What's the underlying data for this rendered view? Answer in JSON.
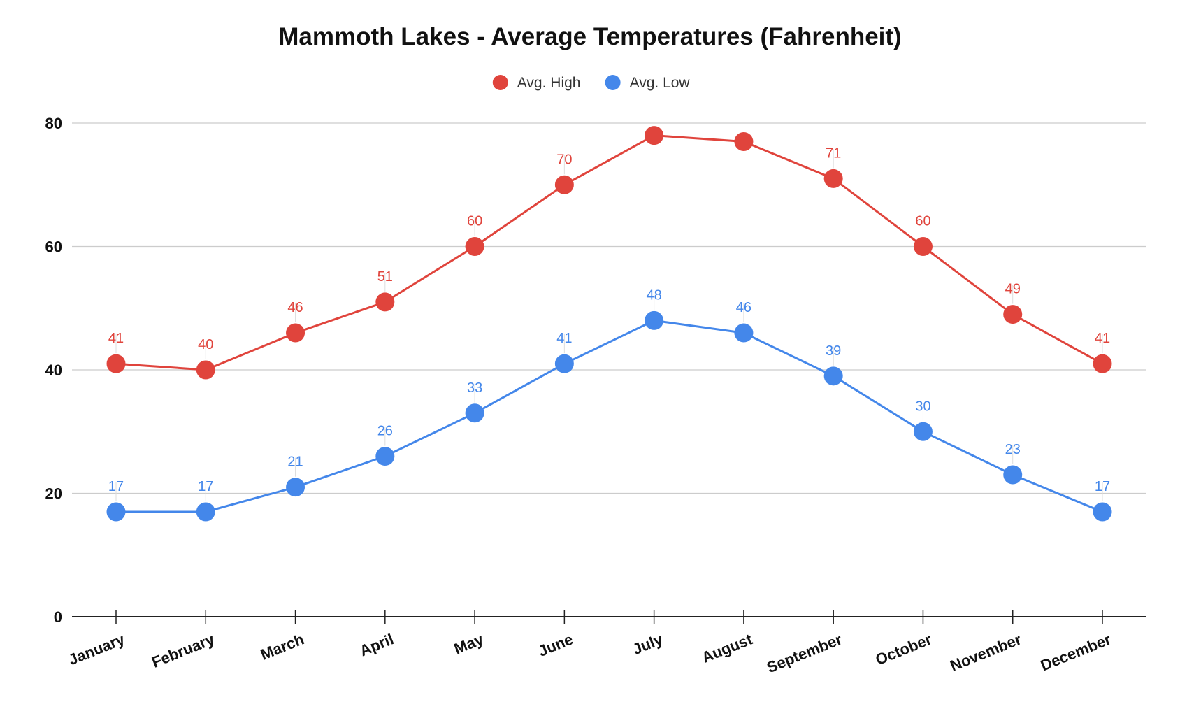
{
  "chart_data": {
    "type": "line",
    "title": "Mammoth Lakes - Average Temperatures (Fahrenheit)",
    "xlabel": "",
    "ylabel": "",
    "categories": [
      "January",
      "February",
      "March",
      "April",
      "May",
      "June",
      "July",
      "August",
      "September",
      "October",
      "November",
      "December"
    ],
    "ylim": [
      0,
      80
    ],
    "yticks": [
      0,
      20,
      40,
      60,
      80
    ],
    "grid": true,
    "legend_position": "top-center",
    "data_labels": true,
    "series": [
      {
        "name": "Avg. High",
        "color": "#e0443c",
        "values": [
          41,
          40,
          46,
          51,
          60,
          70,
          78,
          77,
          71,
          60,
          49,
          41
        ],
        "labels": [
          "41",
          "40",
          "46",
          "51",
          "60",
          "70",
          "",
          "",
          "71",
          "60",
          "49",
          "41"
        ]
      },
      {
        "name": "Avg. Low",
        "color": "#4487ea",
        "values": [
          17,
          17,
          21,
          26,
          33,
          41,
          48,
          46,
          39,
          30,
          23,
          17
        ],
        "labels": [
          "17",
          "17",
          "21",
          "26",
          "33",
          "41",
          "48",
          "46",
          "39",
          "30",
          "23",
          "17"
        ]
      }
    ]
  }
}
